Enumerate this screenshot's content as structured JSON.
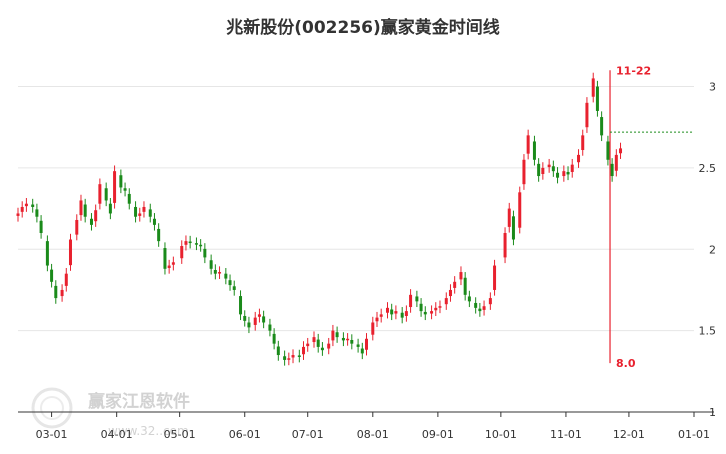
{
  "chart_data": {
    "type": "candlestick",
    "title": "兆新股份(002256)赢家黄金时间线",
    "xlabel": "",
    "ylabel": "",
    "ylim": [
      1,
      3.2
    ],
    "y_ticks": [
      1,
      1.5,
      2,
      2.5,
      3
    ],
    "y_tick_labels": [
      "1",
      "1.5",
      "2",
      "2.5",
      "3"
    ],
    "x_range": [
      "2023-02-13",
      "2024-01-01"
    ],
    "x_ticks": [
      "2023-03-01",
      "2023-04-01",
      "2023-05-01",
      "2023-06-01",
      "2023-07-01",
      "2023-08-01",
      "2023-09-01",
      "2023-10-01",
      "2023-11-01",
      "2023-12-01",
      "2024-01-01"
    ],
    "x_tick_labels": [
      "03-01",
      "04-01",
      "05-01",
      "06-01",
      "07-01",
      "08-01",
      "09-01",
      "10-01",
      "11-01",
      "12-01",
      "01-01"
    ],
    "grid": "horizontal",
    "up_color": "#e8212e",
    "down_color": "#1a8a1a",
    "series": [
      {
        "values": [
          [
            "2023-02-13",
            2.22
          ],
          [
            "2023-02-15",
            2.26
          ],
          [
            "2023-02-17",
            2.28
          ],
          [
            "2023-02-20",
            2.26
          ],
          [
            "2023-02-22",
            2.2
          ],
          [
            "2023-02-24",
            2.1
          ],
          [
            "2023-02-27",
            1.9
          ],
          [
            "2023-03-01",
            1.8
          ],
          [
            "2023-03-03",
            1.7
          ],
          [
            "2023-03-06",
            1.75
          ],
          [
            "2023-03-08",
            1.85
          ],
          [
            "2023-03-10",
            2.06
          ],
          [
            "2023-03-13",
            2.18
          ],
          [
            "2023-03-15",
            2.3
          ],
          [
            "2023-03-17",
            2.2
          ],
          [
            "2023-03-20",
            2.15
          ],
          [
            "2023-03-22",
            2.24
          ],
          [
            "2023-03-24",
            2.4
          ],
          [
            "2023-03-27",
            2.3
          ],
          [
            "2023-03-29",
            2.22
          ],
          [
            "2023-03-31",
            2.48
          ],
          [
            "2023-04-03",
            2.38
          ],
          [
            "2023-04-05",
            2.36
          ],
          [
            "2023-04-07",
            2.28
          ],
          [
            "2023-04-10",
            2.2
          ],
          [
            "2023-04-12",
            2.22
          ],
          [
            "2023-04-14",
            2.26
          ],
          [
            "2023-04-17",
            2.2
          ],
          [
            "2023-04-19",
            2.15
          ],
          [
            "2023-04-21",
            2.05
          ],
          [
            "2023-04-24",
            1.88
          ],
          [
            "2023-04-26",
            1.9
          ],
          [
            "2023-04-28",
            1.92
          ],
          [
            "2023-05-02",
            2.02
          ],
          [
            "2023-05-04",
            2.05
          ],
          [
            "2023-05-06",
            2.04
          ],
          [
            "2023-05-09",
            2.03
          ],
          [
            "2023-05-11",
            2.02
          ],
          [
            "2023-05-13",
            1.95
          ],
          [
            "2023-05-16",
            1.88
          ],
          [
            "2023-05-18",
            1.85
          ],
          [
            "2023-05-20",
            1.86
          ],
          [
            "2023-05-23",
            1.82
          ],
          [
            "2023-05-25",
            1.78
          ],
          [
            "2023-05-27",
            1.75
          ],
          [
            "2023-05-30",
            1.6
          ],
          [
            "2023-06-01",
            1.56
          ],
          [
            "2023-06-03",
            1.52
          ],
          [
            "2023-06-06",
            1.58
          ],
          [
            "2023-06-08",
            1.6
          ],
          [
            "2023-06-10",
            1.55
          ],
          [
            "2023-06-13",
            1.5
          ],
          [
            "2023-06-15",
            1.42
          ],
          [
            "2023-06-17",
            1.35
          ],
          [
            "2023-06-20",
            1.32
          ],
          [
            "2023-06-22",
            1.33
          ],
          [
            "2023-06-24",
            1.35
          ],
          [
            "2023-06-27",
            1.34
          ],
          [
            "2023-06-29",
            1.4
          ],
          [
            "2023-07-01",
            1.42
          ],
          [
            "2023-07-04",
            1.46
          ],
          [
            "2023-07-06",
            1.4
          ],
          [
            "2023-07-08",
            1.38
          ],
          [
            "2023-07-11",
            1.42
          ],
          [
            "2023-07-13",
            1.5
          ],
          [
            "2023-07-15",
            1.46
          ],
          [
            "2023-07-18",
            1.44
          ],
          [
            "2023-07-20",
            1.45
          ],
          [
            "2023-07-22",
            1.42
          ],
          [
            "2023-07-25",
            1.4
          ],
          [
            "2023-07-27",
            1.36
          ],
          [
            "2023-07-29",
            1.45
          ],
          [
            "2023-08-01",
            1.55
          ],
          [
            "2023-08-03",
            1.58
          ],
          [
            "2023-08-05",
            1.6
          ],
          [
            "2023-08-08",
            1.64
          ],
          [
            "2023-08-10",
            1.6
          ],
          [
            "2023-08-12",
            1.62
          ],
          [
            "2023-08-15",
            1.58
          ],
          [
            "2023-08-17",
            1.62
          ],
          [
            "2023-08-19",
            1.72
          ],
          [
            "2023-08-22",
            1.68
          ],
          [
            "2023-08-24",
            1.62
          ],
          [
            "2023-08-26",
            1.6
          ],
          [
            "2023-08-29",
            1.62
          ],
          [
            "2023-08-31",
            1.64
          ],
          [
            "2023-09-02",
            1.65
          ],
          [
            "2023-09-05",
            1.7
          ],
          [
            "2023-09-07",
            1.75
          ],
          [
            "2023-09-09",
            1.8
          ],
          [
            "2023-09-12",
            1.86
          ],
          [
            "2023-09-14",
            1.72
          ],
          [
            "2023-09-16",
            1.68
          ],
          [
            "2023-09-19",
            1.64
          ],
          [
            "2023-09-21",
            1.62
          ],
          [
            "2023-09-23",
            1.65
          ],
          [
            "2023-09-26",
            1.7
          ],
          [
            "2023-09-28",
            1.9
          ],
          [
            "2023-10-03",
            2.1
          ],
          [
            "2023-10-05",
            2.25
          ],
          [
            "2023-10-07",
            2.06
          ],
          [
            "2023-10-10",
            2.35
          ],
          [
            "2023-10-12",
            2.55
          ],
          [
            "2023-10-14",
            2.7
          ],
          [
            "2023-10-17",
            2.55
          ],
          [
            "2023-10-19",
            2.45
          ],
          [
            "2023-10-21",
            2.5
          ],
          [
            "2023-10-24",
            2.52
          ],
          [
            "2023-10-26",
            2.48
          ],
          [
            "2023-10-28",
            2.44
          ],
          [
            "2023-10-31",
            2.48
          ],
          [
            "2023-11-02",
            2.46
          ],
          [
            "2023-11-04",
            2.52
          ],
          [
            "2023-11-07",
            2.58
          ],
          [
            "2023-11-09",
            2.7
          ],
          [
            "2023-11-11",
            2.9
          ],
          [
            "2023-11-14",
            3.05
          ],
          [
            "2023-11-16",
            2.85
          ],
          [
            "2023-11-18",
            2.7
          ],
          [
            "2023-11-21",
            2.55
          ],
          [
            "2023-11-23",
            2.45
          ],
          [
            "2023-11-25",
            2.58
          ],
          [
            "2023-11-27",
            2.62
          ]
        ]
      }
    ],
    "annotations": [
      {
        "text": "11-22",
        "x": "2023-11-22",
        "y": 3.1,
        "color": "#e8212e"
      },
      {
        "text": "8.0",
        "x": "2023-11-22",
        "y": 1.3,
        "color": "#e8212e"
      }
    ],
    "reference_lines": [
      {
        "type": "vertical",
        "x": "2023-11-22",
        "y_from": 1.3,
        "y_to": 3.1,
        "color": "#e8212e"
      },
      {
        "type": "horizontal",
        "y": 2.72,
        "x_from": "2023-11-22",
        "color": "#1a8a1a",
        "style": "dashed"
      }
    ],
    "legend": "none",
    "watermark": {
      "brand": "赢家江恩软件",
      "url": "www.32..com"
    }
  }
}
